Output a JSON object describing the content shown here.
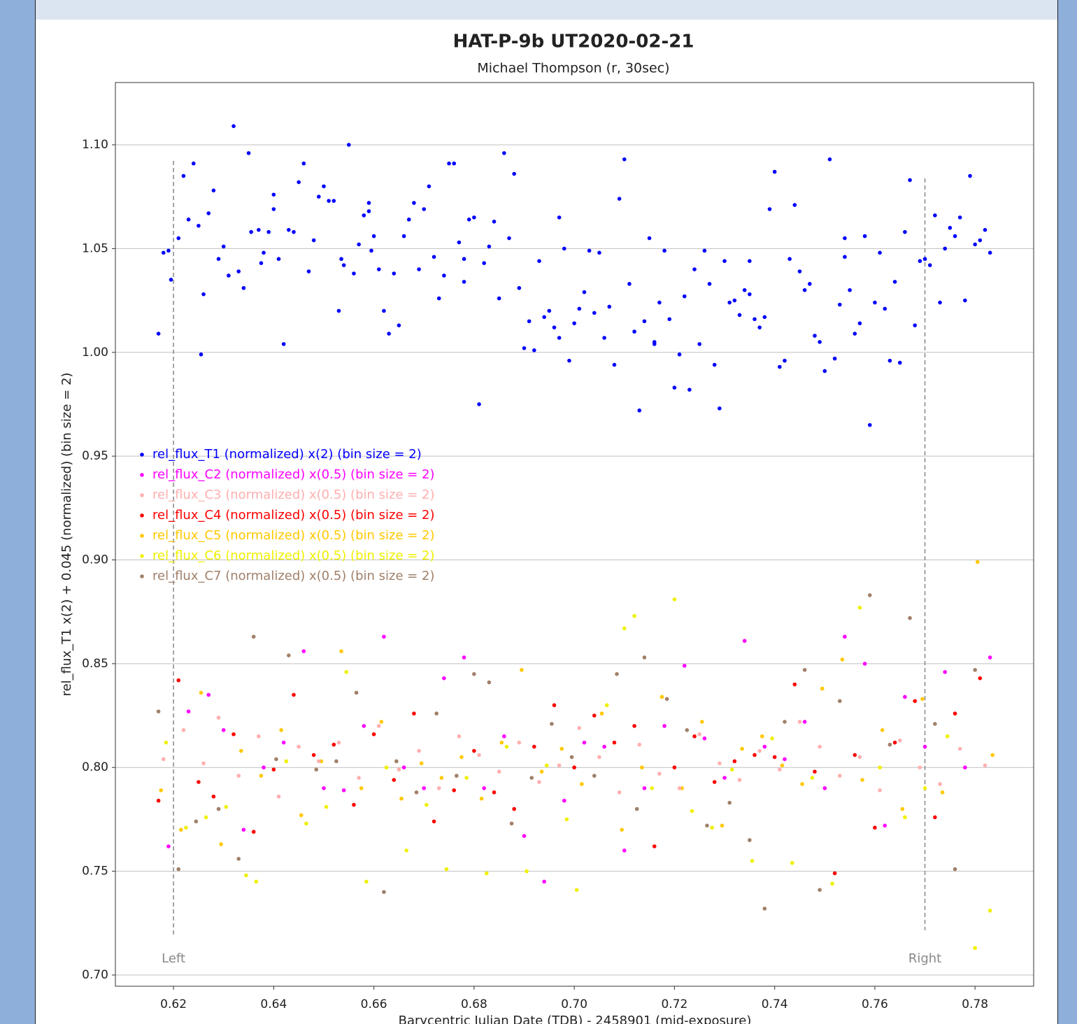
{
  "chart_data": {
    "type": "scatter",
    "title": "HAT-P-9b UT2020-02-21",
    "subtitle": "Michael Thompson (r, 30sec)",
    "xlabel": "Barycentric Julian Date (TDB) - 2458901 (mid-exposure)",
    "ylabel": "rel_flux_T1 x(2) + 0.045 (normalized) (bin size = 2)",
    "xlim": [
      0.6084,
      0.7917
    ],
    "ylim": [
      0.6946,
      1.13
    ],
    "xticks": [
      0.62,
      0.64,
      0.66,
      0.68,
      {
        "value": 0.7,
        "label": "0.70"
      },
      0.72,
      0.74,
      0.76,
      0.78
    ],
    "yticks": [
      {
        "value": 0.7,
        "label": "0.70"
      },
      0.75,
      {
        "value": 0.8,
        "label": "0.80"
      },
      0.85,
      {
        "value": 0.9,
        "label": "0.90"
      },
      0.95,
      {
        "value": 1.0,
        "label": "1.00"
      },
      1.05,
      {
        "value": 1.1,
        "label": "1.10"
      }
    ],
    "grid": true,
    "legend": "left",
    "markers": [
      {
        "label": "Left",
        "x": 0.62
      },
      {
        "label": "Right",
        "x": 0.77
      }
    ],
    "series": [
      {
        "name": "rel_flux_T1 (normalized) x(2) (bin size = 2)",
        "color": "#0000ff",
        "x": [
          0.617,
          0.618,
          0.619,
          0.6195,
          0.621,
          0.622,
          0.623,
          0.624,
          0.625,
          0.6255,
          0.626,
          0.627,
          0.628,
          0.629,
          0.63,
          0.631,
          0.632,
          0.633,
          0.634,
          0.635,
          0.6355,
          0.637,
          0.6375,
          0.638,
          0.639,
          0.64,
          0.64,
          0.641,
          0.642,
          0.643,
          0.644,
          0.645,
          0.646,
          0.647,
          0.648,
          0.649,
          0.65,
          0.651,
          0.652,
          0.653,
          0.6535,
          0.654,
          0.655,
          0.656,
          0.657,
          0.658,
          0.659,
          0.659,
          0.6595,
          0.66,
          0.661,
          0.662,
          0.663,
          0.664,
          0.665,
          0.666,
          0.667,
          0.668,
          0.669,
          0.67,
          0.671,
          0.672,
          0.673,
          0.674,
          0.675,
          0.676,
          0.677,
          0.678,
          0.678,
          0.679,
          0.68,
          0.681,
          0.682,
          0.683,
          0.684,
          0.685,
          0.686,
          0.687,
          0.688,
          0.689,
          0.69,
          0.691,
          0.692,
          0.693,
          0.694,
          0.695,
          0.696,
          0.697,
          0.697,
          0.698,
          0.699,
          0.7,
          0.701,
          0.702,
          0.703,
          0.704,
          0.705,
          0.706,
          0.707,
          0.708,
          0.709,
          0.71,
          0.711,
          0.712,
          0.713,
          0.714,
          0.715,
          0.716,
          0.716,
          0.717,
          0.718,
          0.719,
          0.72,
          0.721,
          0.722,
          0.723,
          0.724,
          0.725,
          0.726,
          0.727,
          0.728,
          0.729,
          0.73,
          0.731,
          0.732,
          0.733,
          0.734,
          0.735,
          0.735,
          0.736,
          0.737,
          0.738,
          0.739,
          0.74,
          0.741,
          0.742,
          0.743,
          0.744,
          0.745,
          0.746,
          0.747,
          0.748,
          0.749,
          0.75,
          0.751,
          0.752,
          0.753,
          0.754,
          0.754,
          0.755,
          0.756,
          0.757,
          0.758,
          0.759,
          0.76,
          0.761,
          0.762,
          0.763,
          0.764,
          0.765,
          0.766,
          0.767,
          0.768,
          0.769,
          0.77,
          0.771,
          0.772,
          0.773,
          0.774,
          0.775,
          0.776,
          0.777,
          0.778,
          0.779,
          0.78,
          0.781,
          0.782,
          0.783
        ],
        "values": [
          1.009,
          1.048,
          1.049,
          1.035,
          1.055,
          1.085,
          1.064,
          1.091,
          1.061,
          0.999,
          1.028,
          1.067,
          1.078,
          1.045,
          1.051,
          1.037,
          1.109,
          1.039,
          1.031,
          1.096,
          1.058,
          1.059,
          1.043,
          1.048,
          1.058,
          1.076,
          1.069,
          1.045,
          1.004,
          1.059,
          1.058,
          1.082,
          1.091,
          1.039,
          1.054,
          1.075,
          1.08,
          1.073,
          1.073,
          1.02,
          1.045,
          1.042,
          1.1,
          1.038,
          1.052,
          1.066,
          1.068,
          1.072,
          1.049,
          1.056,
          1.04,
          1.02,
          1.009,
          1.038,
          1.013,
          1.056,
          1.064,
          1.072,
          1.04,
          1.069,
          1.08,
          1.046,
          1.026,
          1.037,
          1.091,
          1.091,
          1.053,
          1.034,
          1.045,
          1.064,
          1.065,
          0.975,
          1.043,
          1.051,
          1.063,
          1.026,
          1.096,
          1.055,
          1.086,
          1.031,
          1.002,
          1.015,
          1.001,
          1.044,
          1.017,
          1.02,
          1.012,
          1.065,
          1.007,
          1.05,
          0.996,
          1.014,
          1.021,
          1.029,
          1.049,
          1.019,
          1.048,
          1.007,
          1.022,
          0.994,
          1.074,
          1.093,
          1.033,
          1.01,
          0.972,
          1.015,
          1.055,
          1.004,
          1.005,
          1.024,
          1.049,
          1.016,
          0.983,
          0.999,
          1.027,
          0.982,
          1.04,
          1.004,
          1.049,
          1.033,
          0.994,
          0.973,
          1.044,
          1.024,
          1.025,
          1.018,
          1.03,
          1.028,
          1.044,
          1.016,
          1.012,
          1.017,
          1.069,
          1.087,
          0.993,
          0.996,
          1.045,
          1.071,
          1.039,
          1.03,
          1.033,
          1.008,
          1.005,
          0.991,
          1.093,
          0.997,
          1.023,
          1.046,
          1.055,
          1.03,
          1.009,
          1.014,
          1.056,
          0.965,
          1.024,
          1.048,
          1.021,
          0.996,
          1.034,
          0.995,
          1.058,
          1.083,
          1.013,
          1.044,
          1.045,
          1.042,
          1.066,
          1.024,
          1.05,
          1.06,
          1.056,
          1.065,
          1.025,
          1.085,
          1.052,
          1.054,
          1.059,
          1.048
        ]
      },
      {
        "name": "rel_flux_C2 (normalized) x(0.5) (bin size = 2)",
        "color": "#ff00ff",
        "x": [
          0.619,
          0.623,
          0.627,
          0.63,
          0.634,
          0.638,
          0.642,
          0.646,
          0.65,
          0.654,
          0.658,
          0.662,
          0.666,
          0.67,
          0.674,
          0.678,
          0.682,
          0.686,
          0.69,
          0.694,
          0.698,
          0.702,
          0.706,
          0.71,
          0.714,
          0.718,
          0.722,
          0.726,
          0.73,
          0.734,
          0.738,
          0.742,
          0.746,
          0.75,
          0.754,
          0.758,
          0.762,
          0.766,
          0.77,
          0.774,
          0.778,
          0.783
        ],
        "values": [
          0.762,
          0.827,
          0.835,
          0.818,
          0.77,
          0.8,
          0.812,
          0.856,
          0.79,
          0.789,
          0.82,
          0.863,
          0.8,
          0.79,
          0.843,
          0.853,
          0.79,
          0.815,
          0.767,
          0.745,
          0.784,
          0.812,
          0.81,
          0.76,
          0.79,
          0.82,
          0.849,
          0.814,
          0.795,
          0.861,
          0.81,
          0.804,
          0.822,
          0.79,
          0.863,
          0.85,
          0.772,
          0.834,
          0.81,
          0.846,
          0.8,
          0.853
        ]
      },
      {
        "name": "rel_flux_C3 (normalized) x(0.5) (bin size = 2)",
        "color": "#ffafaf",
        "x": [
          0.618,
          0.622,
          0.626,
          0.629,
          0.633,
          0.637,
          0.641,
          0.645,
          0.649,
          0.653,
          0.657,
          0.661,
          0.665,
          0.669,
          0.673,
          0.677,
          0.681,
          0.685,
          0.689,
          0.693,
          0.697,
          0.701,
          0.705,
          0.709,
          0.713,
          0.717,
          0.721,
          0.725,
          0.729,
          0.733,
          0.737,
          0.741,
          0.745,
          0.749,
          0.753,
          0.757,
          0.761,
          0.765,
          0.769,
          0.773,
          0.777,
          0.782
        ],
        "values": [
          0.804,
          0.818,
          0.802,
          0.824,
          0.796,
          0.815,
          0.786,
          0.81,
          0.803,
          0.812,
          0.795,
          0.82,
          0.799,
          0.808,
          0.79,
          0.815,
          0.806,
          0.798,
          0.812,
          0.793,
          0.801,
          0.819,
          0.805,
          0.788,
          0.811,
          0.797,
          0.79,
          0.816,
          0.802,
          0.794,
          0.808,
          0.799,
          0.822,
          0.81,
          0.796,
          0.805,
          0.789,
          0.813,
          0.8,
          0.792,
          0.809,
          0.801
        ]
      },
      {
        "name": "rel_flux_C4 (normalized) x(0.5) (bin size = 2)",
        "color": "#ff0000",
        "x": [
          0.617,
          0.621,
          0.625,
          0.628,
          0.632,
          0.636,
          0.64,
          0.644,
          0.648,
          0.652,
          0.656,
          0.66,
          0.664,
          0.668,
          0.672,
          0.676,
          0.68,
          0.684,
          0.688,
          0.692,
          0.696,
          0.7,
          0.704,
          0.708,
          0.712,
          0.716,
          0.72,
          0.724,
          0.728,
          0.732,
          0.736,
          0.74,
          0.744,
          0.748,
          0.752,
          0.756,
          0.76,
          0.764,
          0.768,
          0.772,
          0.776,
          0.781
        ],
        "values": [
          0.784,
          0.842,
          0.793,
          0.786,
          0.816,
          0.769,
          0.799,
          0.835,
          0.806,
          0.811,
          0.782,
          0.816,
          0.794,
          0.826,
          0.774,
          0.789,
          0.808,
          0.788,
          0.78,
          0.81,
          0.83,
          0.8,
          0.825,
          0.812,
          0.82,
          0.762,
          0.8,
          0.815,
          0.793,
          0.803,
          0.806,
          0.805,
          0.84,
          0.798,
          0.749,
          0.806,
          0.771,
          0.812,
          0.832,
          0.776,
          0.826,
          0.843
        ]
      },
      {
        "name": "rel_flux_C5 (normalized) x(0.5) (bin size = 2)",
        "color": "#ffc800",
        "x": [
          0.6175,
          0.6215,
          0.6255,
          0.6295,
          0.6335,
          0.6375,
          0.6415,
          0.6455,
          0.6495,
          0.6535,
          0.6575,
          0.6615,
          0.6655,
          0.6695,
          0.6735,
          0.6775,
          0.6815,
          0.6855,
          0.6895,
          0.6935,
          0.6975,
          0.7015,
          0.7055,
          0.7095,
          0.7135,
          0.7175,
          0.7215,
          0.7255,
          0.7295,
          0.7335,
          0.7375,
          0.7415,
          0.7455,
          0.7495,
          0.7535,
          0.7575,
          0.7615,
          0.7655,
          0.7695,
          0.7735,
          0.7805,
          0.7835
        ],
        "values": [
          0.789,
          0.77,
          0.836,
          0.763,
          0.808,
          0.796,
          0.818,
          0.777,
          0.803,
          0.856,
          0.79,
          0.822,
          0.785,
          0.802,
          0.795,
          0.805,
          0.785,
          0.812,
          0.847,
          0.798,
          0.809,
          0.792,
          0.826,
          0.77,
          0.8,
          0.834,
          0.79,
          0.822,
          0.772,
          0.809,
          0.815,
          0.801,
          0.792,
          0.838,
          0.852,
          0.794,
          0.818,
          0.78,
          0.833,
          0.788,
          0.899,
          0.806
        ]
      },
      {
        "name": "rel_flux_C6 (normalized) x(0.5) (bin size = 2)",
        "color": "#f0f000",
        "x": [
          0.6185,
          0.6225,
          0.6265,
          0.6305,
          0.6345,
          0.6365,
          0.6425,
          0.6465,
          0.6505,
          0.6545,
          0.6585,
          0.6625,
          0.6665,
          0.6705,
          0.6745,
          0.6785,
          0.6825,
          0.6865,
          0.6905,
          0.6945,
          0.6985,
          0.7005,
          0.7065,
          0.71,
          0.712,
          0.7155,
          0.72,
          0.7235,
          0.7275,
          0.7315,
          0.7355,
          0.7395,
          0.7435,
          0.7475,
          0.7515,
          0.757,
          0.761,
          0.766,
          0.77,
          0.7745,
          0.78,
          0.783
        ],
        "values": [
          0.812,
          0.771,
          0.776,
          0.781,
          0.748,
          0.745,
          0.803,
          0.773,
          0.781,
          0.846,
          0.745,
          0.8,
          0.76,
          0.782,
          0.751,
          0.795,
          0.749,
          0.81,
          0.75,
          0.801,
          0.775,
          0.741,
          0.83,
          0.867,
          0.873,
          0.79,
          0.881,
          0.779,
          0.771,
          0.799,
          0.755,
          0.814,
          0.754,
          0.795,
          0.744,
          0.877,
          0.8,
          0.776,
          0.79,
          0.815,
          0.713,
          0.731
        ]
      },
      {
        "name": "rel_flux_C7 (normalized) x(0.5) (bin size = 2)",
        "color": "#a0806a",
        "x": [
          0.617,
          0.621,
          0.6245,
          0.629,
          0.633,
          0.636,
          0.6405,
          0.643,
          0.6485,
          0.6525,
          0.6565,
          0.662,
          0.6645,
          0.6685,
          0.6725,
          0.6765,
          0.68,
          0.683,
          0.6875,
          0.6915,
          0.6955,
          0.6995,
          0.704,
          0.7085,
          0.7125,
          0.714,
          0.7185,
          0.7225,
          0.7265,
          0.731,
          0.735,
          0.738,
          0.742,
          0.746,
          0.749,
          0.753,
          0.759,
          0.763,
          0.767,
          0.772,
          0.776,
          0.78
        ],
        "values": [
          0.827,
          0.751,
          0.774,
          0.78,
          0.756,
          0.863,
          0.804,
          0.854,
          0.799,
          0.803,
          0.836,
          0.74,
          0.803,
          0.788,
          0.826,
          0.796,
          0.845,
          0.841,
          0.773,
          0.795,
          0.821,
          0.805,
          0.796,
          0.845,
          0.78,
          0.853,
          0.833,
          0.818,
          0.772,
          0.783,
          0.765,
          0.732,
          0.822,
          0.847,
          0.741,
          0.832,
          0.883,
          0.811,
          0.872,
          0.821,
          0.751,
          0.847
        ]
      }
    ]
  }
}
